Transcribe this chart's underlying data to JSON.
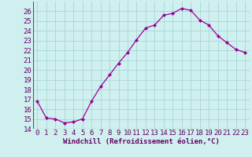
{
  "x": [
    0,
    1,
    2,
    3,
    4,
    5,
    6,
    7,
    8,
    9,
    10,
    11,
    12,
    13,
    14,
    15,
    16,
    17,
    18,
    19,
    20,
    21,
    22,
    23
  ],
  "y": [
    16.8,
    15.1,
    15.0,
    14.6,
    14.7,
    15.0,
    16.8,
    18.3,
    19.5,
    20.7,
    21.8,
    23.1,
    24.3,
    24.6,
    25.6,
    25.8,
    26.3,
    26.1,
    25.1,
    24.6,
    23.5,
    22.8,
    22.1,
    21.8
  ],
  "line_color": "#990099",
  "marker": "D",
  "marker_size": 2,
  "bg_color": "#cff0ee",
  "grid_color": "#aadada",
  "xlabel": "Windchill (Refroidissement éolien,°C)",
  "ylim": [
    14,
    27
  ],
  "yticks": [
    14,
    15,
    16,
    17,
    18,
    19,
    20,
    21,
    22,
    23,
    24,
    25,
    26
  ],
  "xticks": [
    0,
    1,
    2,
    3,
    4,
    5,
    6,
    7,
    8,
    9,
    10,
    11,
    12,
    13,
    14,
    15,
    16,
    17,
    18,
    19,
    20,
    21,
    22,
    23
  ],
  "xlim": [
    -0.5,
    23.5
  ],
  "tick_fontsize": 6.5,
  "xlabel_fontsize": 6.5
}
